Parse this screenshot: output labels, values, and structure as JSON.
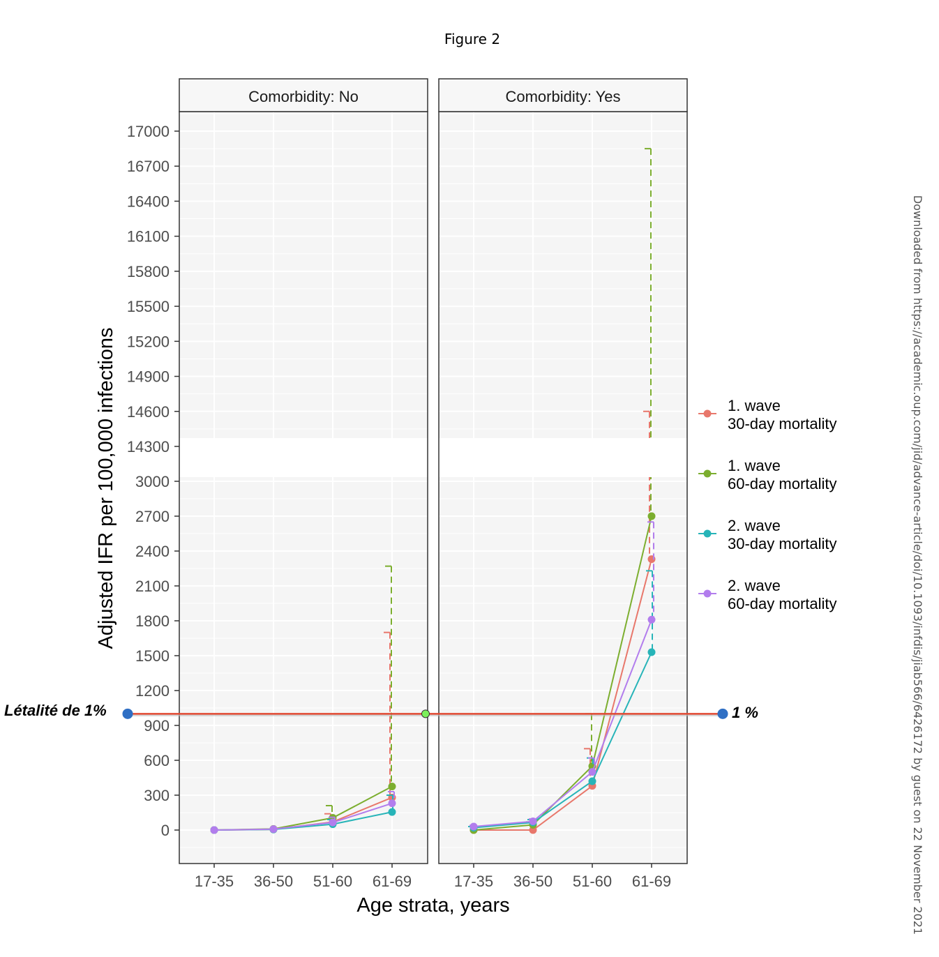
{
  "figure_title": "Figure 2",
  "side_note": "Downloaded from https://academic.oup.com/jid/advance-article/doi/10.1093/infdis/jiab566/6426172 by guest on 22 November 2021",
  "annotations": {
    "left": "Létalité de 1%",
    "right": "1 %",
    "line_value": 1000,
    "line_color": "#e24a33",
    "marker_color": "#2f6fc4",
    "mid_marker_color": "#7cf05a"
  },
  "chart_data": {
    "type": "line",
    "title": "",
    "xlabel": "Age strata, years",
    "ylabel": "Adjusted IFR per 100,000 infections",
    "categories": [
      "17-35",
      "36-50",
      "51-60",
      "61-69"
    ],
    "y_ticks_lower": [
      0,
      300,
      600,
      900,
      1200,
      1500,
      1800,
      2100,
      2400,
      2700,
      3000
    ],
    "y_ticks_upper": [
      14300,
      14600,
      14900,
      15200,
      15500,
      15800,
      16100,
      16400,
      16700,
      17000
    ],
    "ylim_lower": [
      -300,
      3000
    ],
    "ylim_upper": [
      14300,
      17300
    ],
    "axis_break": [
      3000,
      14300
    ],
    "grid": true,
    "legend_position": "right",
    "panels": [
      {
        "strip": "Comorbidity: No",
        "series": [
          {
            "name": "1. wave\n30-day mortality",
            "color": "#e8776b",
            "values": [
              0,
              5,
              70,
              280
            ],
            "upper": [
              0,
              10,
              140,
              1700
            ]
          },
          {
            "name": "1. wave\n60-day mortality",
            "color": "#7cae2f",
            "values": [
              0,
              10,
              105,
              375
            ],
            "upper": [
              0,
              15,
              210,
              2270
            ]
          },
          {
            "name": "2. wave\n30-day mortality",
            "color": "#27b4b8",
            "values": [
              0,
              5,
              50,
              155
            ],
            "upper": [
              0,
              10,
              90,
              300
            ]
          },
          {
            "name": "2. wave\n60-day mortality",
            "color": "#b27ded",
            "values": [
              0,
              8,
              65,
              230
            ],
            "upper": [
              0,
              12,
              110,
              330
            ]
          }
        ]
      },
      {
        "strip": "Comorbidity: Yes",
        "series": [
          {
            "name": "1. wave\n30-day mortality",
            "color": "#e8776b",
            "values": [
              0,
              0,
              380,
              2330
            ],
            "upper": [
              0,
              0,
              700,
              14600
            ]
          },
          {
            "name": "1. wave\n60-day mortality",
            "color": "#7cae2f",
            "values": [
              0,
              45,
              550,
              2700
            ],
            "upper": [
              0,
              70,
              1000,
              16850
            ]
          },
          {
            "name": "2. wave\n30-day mortality",
            "color": "#27b4b8",
            "values": [
              20,
              65,
              420,
              1530
            ],
            "upper": [
              30,
              90,
              620,
              2230
            ]
          },
          {
            "name": "2. wave\n60-day mortality",
            "color": "#b27ded",
            "values": [
              30,
              75,
              500,
              1810
            ],
            "upper": [
              40,
              95,
              620,
              2650
            ]
          }
        ]
      }
    ]
  }
}
